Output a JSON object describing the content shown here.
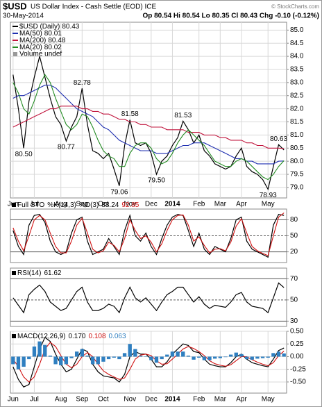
{
  "header": {
    "symbol": "$USD",
    "name": "US Dollar Index - Cash Settle (EOD) ICE",
    "credit": "© StockCharts.com",
    "date": "30-May-2014",
    "quote": "Op 80.54 Hi 80.54 Lo 80.35 Cl 80.43 Chg -0.10 (-0.12%)"
  },
  "chart_data": [
    {
      "type": "line",
      "legend": "rows",
      "grid": true,
      "grid_color": "#d8d8d8",
      "volume_label": "Volume undef",
      "categories": [
        "Jun",
        null,
        null,
        null,
        "Jul",
        null,
        null,
        null,
        null,
        "Aug",
        null,
        null,
        null,
        "Sep",
        null,
        null,
        null,
        "Oct",
        null,
        null,
        null,
        null,
        "Nov",
        null,
        null,
        null,
        "Dec",
        null,
        null,
        null,
        "2014",
        null,
        null,
        null,
        null,
        "Feb",
        null,
        null,
        null,
        "Mar",
        null,
        null,
        null,
        "Apr",
        null,
        null,
        null,
        null,
        "May",
        null,
        null,
        null
      ],
      "ylim": [
        78.6,
        85.3
      ],
      "yticks": [
        {
          "value": 79,
          "label": "79.0"
        },
        79.5,
        {
          "value": 80,
          "label": "80.0"
        },
        80.5,
        {
          "value": 81,
          "label": "81.0"
        },
        81.5,
        {
          "value": 82,
          "label": "82.0"
        },
        82.5,
        {
          "value": 83,
          "label": "83.0"
        },
        83.5,
        {
          "value": 84,
          "label": "84.0"
        },
        84.5,
        {
          "value": 85,
          "label": "85.0"
        }
      ],
      "series": [
        {
          "name": "$USD (Daily)",
          "color": "#000000",
          "values": [
            83.3,
            82.0,
            80.5,
            82.3,
            83.2,
            84.0,
            83.2,
            82.4,
            81.7,
            81.4,
            80.77,
            81.3,
            81.7,
            82.78,
            81.4,
            80.4,
            80.3,
            80.1,
            80.3,
            79.7,
            79.06,
            80.6,
            81.58,
            80.7,
            80.6,
            80.7,
            80.3,
            79.5,
            80.0,
            80.2,
            80.6,
            80.9,
            81.53,
            81.2,
            80.7,
            81.0,
            80.4,
            80.2,
            79.9,
            79.8,
            79.7,
            79.8,
            80.2,
            80.5,
            79.8,
            79.6,
            79.5,
            79.3,
            78.93,
            79.8,
            80.63,
            80.43
          ],
          "value_labels": [
            null,
            null,
            "80.50",
            null,
            null,
            null,
            null,
            null,
            null,
            null,
            "80.77",
            null,
            null,
            "82.78",
            null,
            null,
            null,
            null,
            null,
            null,
            "79.06",
            null,
            "81.58",
            null,
            null,
            null,
            null,
            "79.50",
            null,
            null,
            null,
            null,
            "81.53",
            null,
            null,
            null,
            null,
            null,
            null,
            null,
            null,
            null,
            null,
            null,
            null,
            null,
            null,
            null,
            "78.93",
            null,
            "80.63",
            null
          ]
        },
        {
          "name": "MA(50)",
          "color": "#1f2fb0",
          "values": [
            82.4,
            82.5,
            82.5,
            82.6,
            82.7,
            82.8,
            82.9,
            82.9,
            82.8,
            82.6,
            82.4,
            82.2,
            82.0,
            81.9,
            81.8,
            81.7,
            81.5,
            81.3,
            81.2,
            81.0,
            80.8,
            80.7,
            80.6,
            80.5,
            80.4,
            80.4,
            80.4,
            80.3,
            80.3,
            80.3,
            80.4,
            80.5,
            80.6,
            80.6,
            80.7,
            80.7,
            80.7,
            80.6,
            80.5,
            80.4,
            80.3,
            80.2,
            80.1,
            80.1,
            80.0,
            80.0,
            79.9,
            79.9,
            79.9,
            79.9,
            80.0,
            80.01
          ]
        },
        {
          "name": "MA(200)",
          "color": "#c0143c",
          "values": [
            81.3,
            81.4,
            81.5,
            81.6,
            81.7,
            81.8,
            81.9,
            82.0,
            82.0,
            82.1,
            82.1,
            82.1,
            82.1,
            82.0,
            82.0,
            81.9,
            81.9,
            81.8,
            81.8,
            81.7,
            81.6,
            81.6,
            81.5,
            81.5,
            81.4,
            81.4,
            81.3,
            81.3,
            81.3,
            81.2,
            81.2,
            81.2,
            81.2,
            81.1,
            81.1,
            81.1,
            81.0,
            81.0,
            81.0,
            80.9,
            80.9,
            80.8,
            80.8,
            80.8,
            80.7,
            80.7,
            80.6,
            80.6,
            80.5,
            80.5,
            80.5,
            80.48
          ]
        },
        {
          "name": "MA(20)",
          "color": "#228b22",
          "values": [
            83.0,
            82.6,
            82.0,
            81.8,
            82.3,
            82.9,
            83.3,
            83.0,
            82.4,
            81.9,
            81.4,
            81.2,
            81.4,
            81.8,
            81.7,
            81.3,
            80.8,
            80.4,
            80.2,
            80.1,
            79.8,
            79.8,
            80.3,
            80.6,
            80.7,
            80.7,
            80.5,
            80.1,
            79.9,
            80.0,
            80.3,
            80.7,
            81.0,
            81.2,
            81.0,
            80.8,
            80.6,
            80.3,
            80.0,
            79.9,
            79.8,
            79.8,
            80.0,
            80.1,
            80.0,
            79.8,
            79.6,
            79.4,
            79.3,
            79.5,
            79.8,
            80.02
          ]
        }
      ]
    },
    {
      "type": "line",
      "title": "Full STO",
      "grid": true,
      "grid_color": "#555555",
      "ylim": [
        0,
        100
      ],
      "yticks": [
        20,
        50,
        80
      ],
      "series": [
        {
          "name": "%K(14,3)",
          "color": "#000000",
          "values": [
            60,
            30,
            15,
            70,
            88,
            90,
            75,
            40,
            20,
            15,
            20,
            55,
            80,
            85,
            40,
            15,
            20,
            25,
            45,
            30,
            15,
            60,
            88,
            50,
            40,
            55,
            30,
            15,
            45,
            70,
            85,
            90,
            88,
            60,
            30,
            55,
            25,
            15,
            30,
            25,
            20,
            45,
            80,
            85,
            40,
            25,
            20,
            15,
            10,
            70,
            90,
            88.24
          ]
        },
        {
          "name": "%D(3)",
          "color": "#d01010",
          "values": [
            65,
            40,
            22,
            50,
            80,
            88,
            80,
            55,
            30,
            18,
            18,
            40,
            70,
            83,
            55,
            25,
            18,
            22,
            38,
            32,
            20,
            45,
            80,
            60,
            45,
            50,
            38,
            20,
            35,
            60,
            80,
            88,
            89,
            70,
            40,
            48,
            32,
            18,
            25,
            26,
            22,
            38,
            68,
            82,
            55,
            30,
            22,
            17,
            13,
            50,
            85,
            92.85
          ]
        }
      ]
    },
    {
      "type": "line",
      "title": "RSI(14)",
      "grid": true,
      "grid_color": "#555555",
      "ylim": [
        25,
        80
      ],
      "yticks": [
        30,
        50,
        70
      ],
      "series": [
        {
          "color": "#000000",
          "values": [
            52,
            45,
            38,
            55,
            60,
            64,
            58,
            48,
            44,
            40,
            42,
            50,
            58,
            62,
            48,
            40,
            40,
            42,
            46,
            44,
            38,
            52,
            62,
            52,
            48,
            52,
            46,
            40,
            48,
            55,
            58,
            62,
            62,
            55,
            48,
            53,
            46,
            42,
            45,
            44,
            43,
            48,
            55,
            57,
            48,
            44,
            43,
            42,
            38,
            52,
            66,
            61.62
          ]
        }
      ]
    },
    {
      "type": "line",
      "title": "MACD(12,26,9)",
      "grid": true,
      "grid_color": "#d8d8d8",
      "categories": [
        "Jun",
        null,
        null,
        null,
        "Jul",
        null,
        null,
        null,
        null,
        "Aug",
        null,
        null,
        null,
        "Sep",
        null,
        null,
        null,
        "Oct",
        null,
        null,
        null,
        null,
        "Nov",
        null,
        null,
        null,
        "Dec",
        null,
        null,
        null,
        "2014",
        null,
        null,
        null,
        null,
        "Feb",
        null,
        null,
        null,
        "Mar",
        null,
        null,
        null,
        "Apr",
        null,
        null,
        null,
        null,
        "May",
        null,
        null,
        null
      ],
      "ylim": [
        -0.72,
        0.5
      ],
      "yticks": [
        {
          "value": -0.5,
          "label": "-0.50"
        },
        {
          "value": -0.25,
          "label": "-0.25"
        },
        {
          "value": 0,
          "label": "0.00"
        },
        {
          "value": 0.25,
          "label": "0.25"
        },
        {
          "value": 0.5,
          "label": "0.50"
        }
      ],
      "series": [
        {
          "color": "#000000",
          "last_label": "0.170",
          "values": [
            -0.2,
            -0.45,
            -0.6,
            -0.55,
            -0.2,
            0.15,
            0.38,
            0.3,
            0.05,
            -0.15,
            -0.3,
            -0.25,
            -0.05,
            0.15,
            0.1,
            -0.15,
            -0.3,
            -0.38,
            -0.4,
            -0.42,
            -0.5,
            -0.35,
            0.0,
            0.1,
            0.05,
            0.05,
            -0.05,
            -0.2,
            -0.2,
            -0.1,
            0.05,
            0.15,
            0.25,
            0.22,
            0.1,
            0.08,
            -0.05,
            -0.15,
            -0.18,
            -0.2,
            -0.2,
            -0.12,
            0.0,
            0.05,
            -0.05,
            -0.12,
            -0.15,
            -0.18,
            -0.2,
            -0.05,
            0.12,
            0.17
          ]
        },
        {
          "color": "#d01010",
          "values": [
            -0.05,
            -0.2,
            -0.4,
            -0.5,
            -0.4,
            -0.15,
            0.15,
            0.28,
            0.2,
            0.02,
            -0.15,
            -0.22,
            -0.15,
            0.0,
            0.08,
            0.0,
            -0.15,
            -0.28,
            -0.35,
            -0.4,
            -0.45,
            -0.42,
            -0.25,
            -0.05,
            0.03,
            0.05,
            0.02,
            -0.08,
            -0.15,
            -0.14,
            -0.05,
            0.05,
            0.15,
            0.2,
            0.16,
            0.1,
            0.02,
            -0.08,
            -0.14,
            -0.17,
            -0.19,
            -0.16,
            -0.08,
            0.0,
            0.0,
            -0.06,
            -0.11,
            -0.15,
            -0.18,
            -0.12,
            0.02,
            0.108
          ]
        },
        {
          "type": "bar",
          "color": "#2f7fc0",
          "values": [
            -0.15,
            -0.25,
            -0.2,
            -0.05,
            0.2,
            0.3,
            0.23,
            0.02,
            -0.15,
            -0.17,
            -0.15,
            -0.03,
            0.1,
            0.15,
            0.02,
            -0.15,
            -0.15,
            -0.1,
            -0.05,
            -0.02,
            -0.05,
            0.07,
            0.25,
            0.15,
            0.02,
            0,
            -0.07,
            -0.12,
            -0.05,
            0.04,
            0.1,
            0.1,
            0.1,
            0.02,
            -0.06,
            -0.02,
            -0.07,
            -0.07,
            -0.04,
            -0.03,
            -0.01,
            0.04,
            0.08,
            0.05,
            -0.05,
            -0.06,
            -0.04,
            -0.03,
            -0.02,
            0.07,
            0.1,
            0.063
          ]
        }
      ]
    }
  ]
}
